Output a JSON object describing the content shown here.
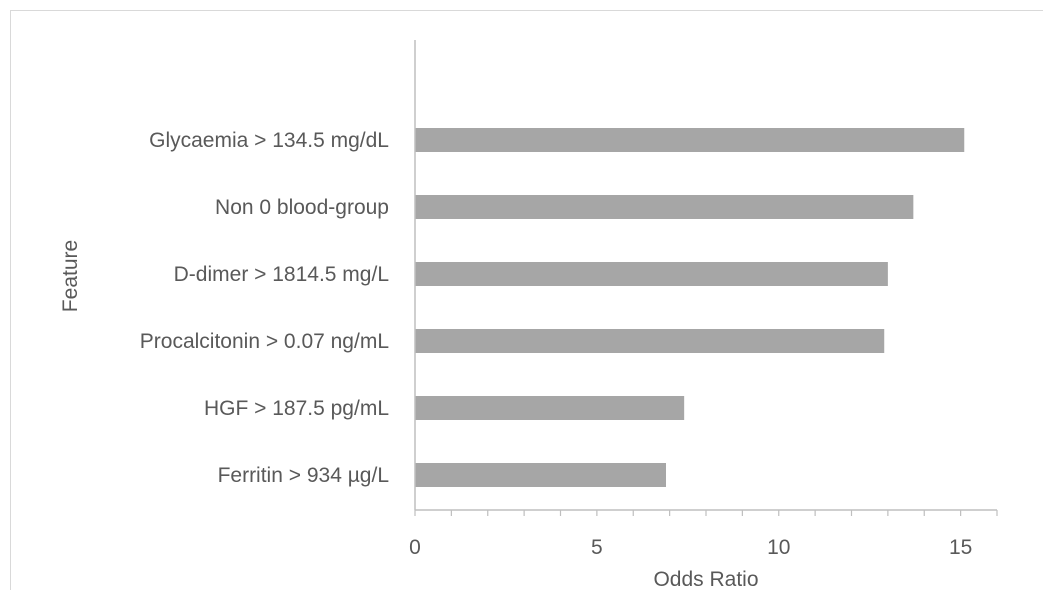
{
  "chart_data": {
    "type": "bar",
    "orientation": "horizontal",
    "title": "",
    "xlabel": "Odds Ratio",
    "ylabel": "Feature",
    "categories": [
      "Glycaemia > 134.5 mg/dL",
      "Non 0 blood-group",
      "D-dimer > 1814.5 mg/L",
      "Procalcitonin > 0.07 ng/mL",
      "HGF > 187.5 pg/mL",
      "Ferritin > 934 µg/L"
    ],
    "values": [
      15.1,
      13.7,
      13.0,
      12.9,
      7.4,
      6.9
    ],
    "xlim": [
      0,
      16
    ],
    "xticks": [
      0,
      5,
      10,
      15
    ],
    "minor_tick_step": 1,
    "grid": false,
    "legend": "none",
    "bar_color": "#a6a6a6",
    "axis_color": "#bfbfbf",
    "text_color": "#595959"
  }
}
